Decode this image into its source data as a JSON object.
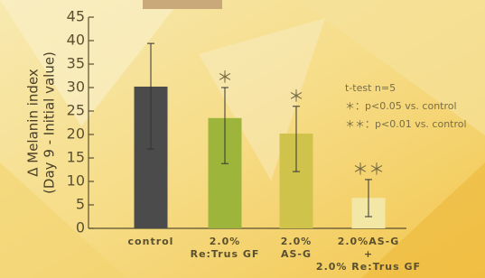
{
  "chart_data": {
    "type": "bar",
    "ylabel": [
      "Δ Melanin index",
      "(Day 9 - Initial value)"
    ],
    "categories": [
      [
        "control"
      ],
      [
        "2.0%",
        "Re:Trus GF"
      ],
      [
        "2.0%",
        "AS-G"
      ],
      [
        "2.0%AS-G",
        "+",
        "2.0% Re:Trus GF"
      ]
    ],
    "values": [
      30.2,
      23.5,
      20.2,
      6.5
    ],
    "err_minus": [
      13.3,
      9.7,
      8.1,
      4.0
    ],
    "err_plus": [
      9.2,
      6.5,
      5.8,
      3.9
    ],
    "colors": [
      "#4b4b4b",
      "#9db53a",
      "#cfc34c",
      "#f2e7a4"
    ],
    "significance": [
      null,
      "＊",
      "＊",
      "＊＊"
    ],
    "notes": [
      "t-test n=5",
      "＊：p<0.05 vs. control",
      "＊＊：p<0.01 vs. control"
    ],
    "ylim": [
      0,
      45
    ],
    "yticks": [
      0,
      5,
      10,
      15,
      20,
      25,
      30,
      35,
      40,
      45
    ]
  }
}
